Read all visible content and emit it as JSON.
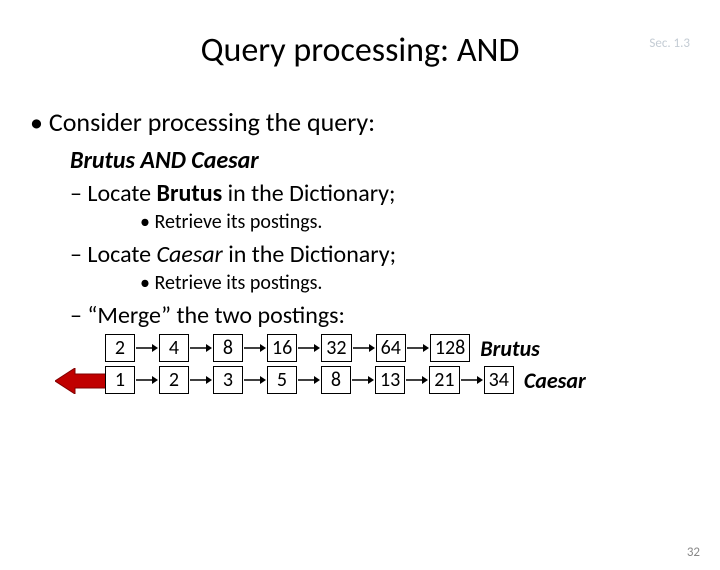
{
  "sectionLabel": "Sec. 1.3",
  "title": "Query processing: AND",
  "bullet_main": "Consider processing the query:",
  "query_line": "Brutus AND Caesar",
  "locate1_pre": "Locate ",
  "locate1_term": "Brutus",
  "locate1_post": " in the Dictionary;",
  "retrieve1": "Retrieve its postings.",
  "locate2_pre": "Locate ",
  "locate2_term": "Caesar",
  "locate2_post": " in the Dictionary;",
  "retrieve2": "Retrieve its postings.",
  "merge_pre": "“Merge”",
  "merge_post": " the two postings:",
  "row1": {
    "values": [
      "2",
      "4",
      "8",
      "16",
      "32",
      "64",
      "128"
    ],
    "label": "Brutus"
  },
  "row2": {
    "values": [
      "1",
      "2",
      "3",
      "5",
      "8",
      "13",
      "21",
      "34"
    ],
    "label": "Caesar"
  },
  "colors": {
    "box_border": "#000000",
    "arrow_line": "#000000",
    "big_arrow_fill": "#c00000",
    "big_arrow_stroke": "#800000"
  },
  "slideNumber": "32"
}
